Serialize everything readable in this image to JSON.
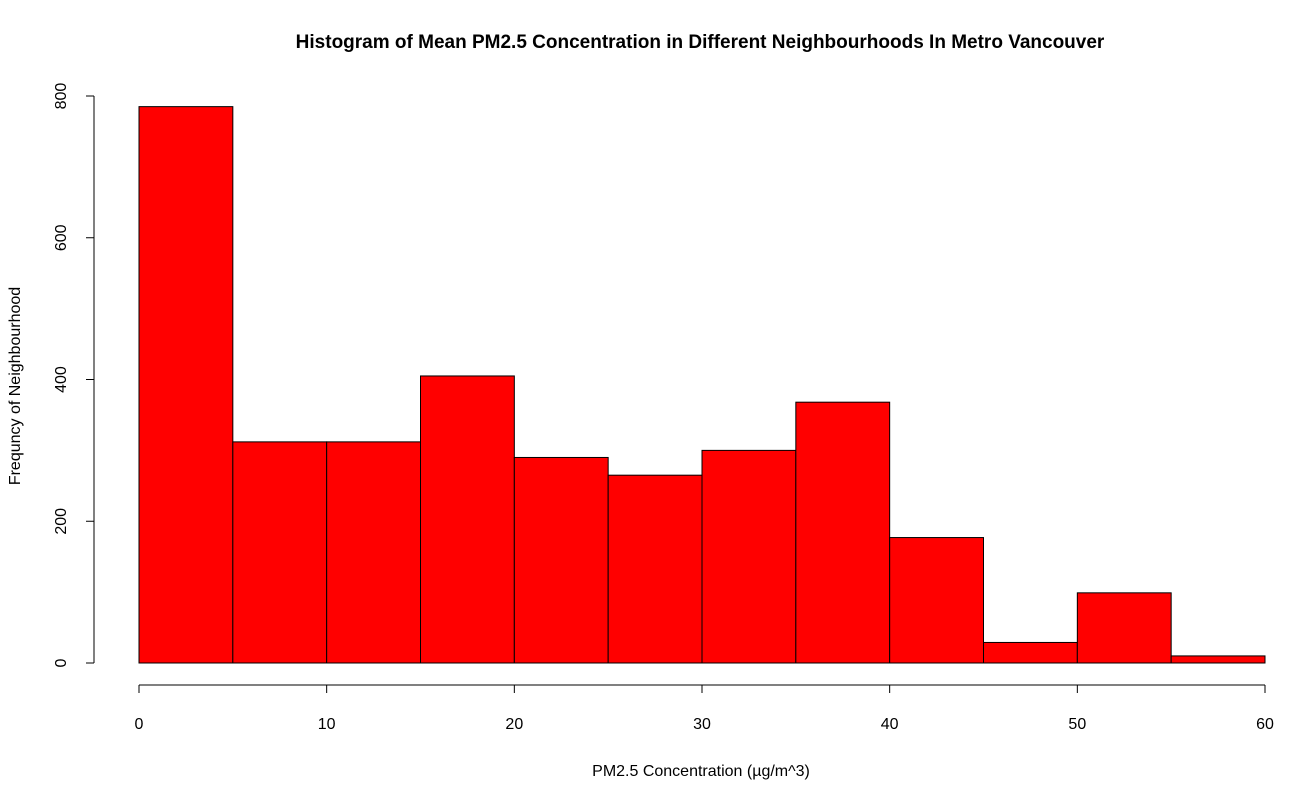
{
  "chart_data": {
    "type": "bar",
    "title": "Histogram of Mean PM2.5 Concentration in Different Neighbourhoods In Metro Vancouver",
    "xlabel": "PM2.5 Concentration (µg/m^3)",
    "ylabel": "Frequncy of Neighbourhood",
    "bins": [
      {
        "start": 0,
        "end": 5,
        "count": 785
      },
      {
        "start": 5,
        "end": 10,
        "count": 312
      },
      {
        "start": 10,
        "end": 15,
        "count": 312
      },
      {
        "start": 15,
        "end": 20,
        "count": 405
      },
      {
        "start": 20,
        "end": 25,
        "count": 290
      },
      {
        "start": 25,
        "end": 30,
        "count": 265
      },
      {
        "start": 30,
        "end": 35,
        "count": 300
      },
      {
        "start": 35,
        "end": 40,
        "count": 368
      },
      {
        "start": 40,
        "end": 45,
        "count": 177
      },
      {
        "start": 45,
        "end": 50,
        "count": 29
      },
      {
        "start": 50,
        "end": 55,
        "count": 99
      },
      {
        "start": 55,
        "end": 60,
        "count": 10
      }
    ],
    "xlim": [
      0,
      60
    ],
    "ylim": [
      0,
      800
    ],
    "x_ticks": [
      "0",
      "10",
      "20",
      "30",
      "40",
      "50",
      "60"
    ],
    "y_ticks": [
      "0",
      "200",
      "400",
      "600",
      "800"
    ],
    "bar_color": "#ff0000",
    "grid": false
  }
}
